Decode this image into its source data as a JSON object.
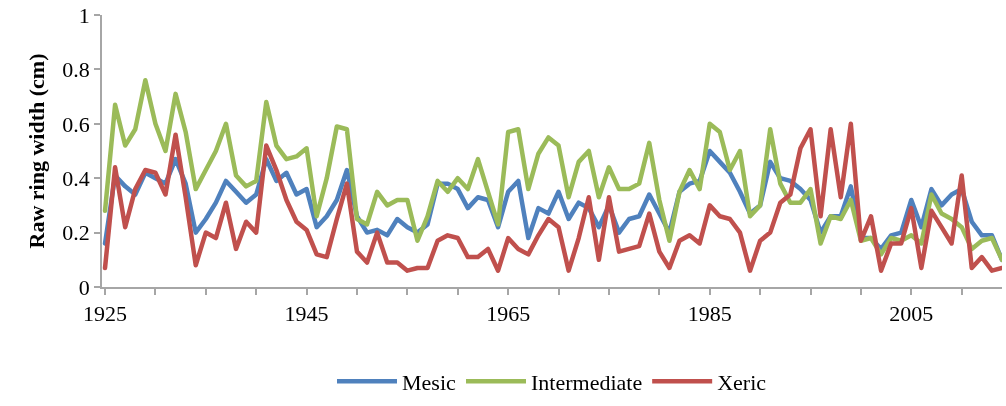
{
  "chart_data": {
    "type": "line",
    "ylabel": "Raw ring width (cm)",
    "x": [
      1925,
      1926,
      1927,
      1928,
      1929,
      1930,
      1931,
      1932,
      1933,
      1934,
      1935,
      1936,
      1937,
      1938,
      1939,
      1940,
      1941,
      1942,
      1943,
      1944,
      1945,
      1946,
      1947,
      1948,
      1949,
      1950,
      1951,
      1952,
      1953,
      1954,
      1955,
      1956,
      1957,
      1958,
      1959,
      1960,
      1961,
      1962,
      1963,
      1964,
      1965,
      1966,
      1967,
      1968,
      1969,
      1970,
      1971,
      1972,
      1973,
      1974,
      1975,
      1976,
      1977,
      1978,
      1979,
      1980,
      1981,
      1982,
      1983,
      1984,
      1985,
      1986,
      1987,
      1988,
      1989,
      1990,
      1991,
      1992,
      1993,
      1994,
      1995,
      1996,
      1997,
      1998,
      1999,
      2000,
      2001,
      2002,
      2003,
      2004,
      2005,
      2006,
      2007,
      2008,
      2009,
      2010,
      2011,
      2012,
      2013,
      2014
    ],
    "series": [
      {
        "name": "Mesic",
        "color": "#4f81bd",
        "values": [
          0.16,
          0.41,
          0.37,
          0.34,
          0.42,
          0.4,
          0.38,
          0.47,
          0.38,
          0.2,
          0.25,
          0.31,
          0.39,
          0.35,
          0.31,
          0.34,
          0.47,
          0.39,
          0.42,
          0.34,
          0.36,
          0.22,
          0.26,
          0.32,
          0.43,
          0.26,
          0.2,
          0.21,
          0.19,
          0.25,
          0.22,
          0.2,
          0.23,
          0.38,
          0.38,
          0.36,
          0.29,
          0.33,
          0.32,
          0.22,
          0.35,
          0.39,
          0.18,
          0.29,
          0.27,
          0.35,
          0.25,
          0.31,
          0.29,
          0.22,
          0.3,
          0.2,
          0.25,
          0.26,
          0.34,
          0.27,
          0.2,
          0.35,
          0.38,
          0.39,
          0.5,
          0.46,
          0.42,
          0.35,
          0.27,
          0.3,
          0.46,
          0.4,
          0.39,
          0.36,
          0.32,
          0.2,
          0.26,
          0.26,
          0.37,
          0.18,
          0.18,
          0.14,
          0.19,
          0.2,
          0.32,
          0.22,
          0.36,
          0.3,
          0.34,
          0.36,
          0.24,
          0.19,
          0.19,
          0.1
        ]
      },
      {
        "name": "Intermediate",
        "color": "#9bbb59",
        "values": [
          0.28,
          0.67,
          0.52,
          0.58,
          0.76,
          0.6,
          0.5,
          0.71,
          0.57,
          0.36,
          0.43,
          0.5,
          0.6,
          0.41,
          0.37,
          0.39,
          0.68,
          0.52,
          0.47,
          0.48,
          0.51,
          0.26,
          0.4,
          0.59,
          0.58,
          0.25,
          0.23,
          0.35,
          0.3,
          0.32,
          0.32,
          0.17,
          0.26,
          0.39,
          0.35,
          0.4,
          0.36,
          0.47,
          0.35,
          0.23,
          0.57,
          0.58,
          0.36,
          0.49,
          0.55,
          0.52,
          0.33,
          0.46,
          0.5,
          0.33,
          0.44,
          0.36,
          0.36,
          0.38,
          0.53,
          0.32,
          0.17,
          0.35,
          0.43,
          0.36,
          0.6,
          0.57,
          0.43,
          0.5,
          0.26,
          0.3,
          0.58,
          0.38,
          0.31,
          0.31,
          0.36,
          0.16,
          0.26,
          0.25,
          0.32,
          0.17,
          0.18,
          0.12,
          0.18,
          0.17,
          0.19,
          0.16,
          0.34,
          0.27,
          0.25,
          0.22,
          0.14,
          0.17,
          0.18,
          0.1
        ]
      },
      {
        "name": "Xeric",
        "color": "#c0504d",
        "values": [
          0.07,
          0.44,
          0.22,
          0.36,
          0.43,
          0.42,
          0.34,
          0.56,
          0.33,
          0.08,
          0.2,
          0.18,
          0.31,
          0.14,
          0.24,
          0.2,
          0.52,
          0.43,
          0.32,
          0.24,
          0.21,
          0.12,
          0.11,
          0.25,
          0.38,
          0.13,
          0.09,
          0.2,
          0.09,
          0.09,
          0.06,
          0.07,
          0.07,
          0.17,
          0.19,
          0.18,
          0.11,
          0.11,
          0.14,
          0.06,
          0.18,
          0.14,
          0.12,
          0.19,
          0.25,
          0.22,
          0.06,
          0.18,
          0.33,
          0.1,
          0.33,
          0.13,
          0.14,
          0.15,
          0.27,
          0.13,
          0.07,
          0.17,
          0.19,
          0.16,
          0.3,
          0.26,
          0.25,
          0.2,
          0.06,
          0.17,
          0.2,
          0.31,
          0.34,
          0.51,
          0.58,
          0.26,
          0.58,
          0.33,
          0.6,
          0.17,
          0.26,
          0.06,
          0.16,
          0.16,
          0.29,
          0.07,
          0.28,
          0.22,
          0.16,
          0.41,
          0.07,
          0.11,
          0.06,
          0.07
        ]
      }
    ],
    "xlim": [
      1924.7,
      2014
    ],
    "xticks": [
      1925,
      {
        "value": 1930,
        "label": null
      },
      {
        "value": 1935,
        "label": null
      },
      {
        "value": 1940,
        "label": null
      },
      1945,
      {
        "value": 1950,
        "label": null
      },
      {
        "value": 1955,
        "label": null
      },
      {
        "value": 1960,
        "label": null
      },
      1965,
      {
        "value": 1970,
        "label": null
      },
      {
        "value": 1975,
        "label": null
      },
      {
        "value": 1980,
        "label": null
      },
      1985,
      {
        "value": 1990,
        "label": null
      },
      {
        "value": 1995,
        "label": null
      },
      {
        "value": 2000,
        "label": null
      },
      2005,
      {
        "value": 2010,
        "label": null
      }
    ],
    "ylim": [
      0,
      1
    ],
    "yticks": [
      0,
      0.2,
      0.4,
      0.6,
      0.8,
      1
    ],
    "legend": "bottom",
    "marker": "none",
    "line_style": "solid"
  }
}
